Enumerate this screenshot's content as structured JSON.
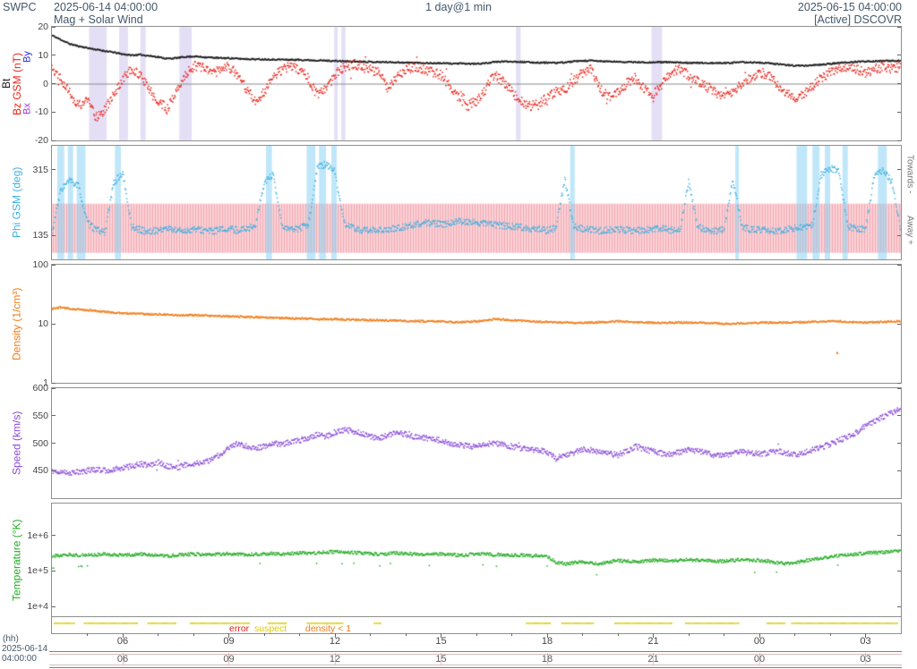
{
  "header": {
    "app_name": "SWPC",
    "start_time": "2025-06-14 04:00:00",
    "cadence": "1 day@1 min",
    "end_time": "2025-06-15 04:00:00",
    "plot_title": "Mag + Solar Wind",
    "source_status": "[Active] DSCOVR"
  },
  "axis_labels": {
    "bt": "Bt",
    "bz": "Bz GSM (nT)",
    "bx": "Bx",
    "by": "By",
    "phi": "Phi GSM (deg)",
    "density": "Density (1/cm³)",
    "speed": "Speed (km/s)",
    "temperature": "Temperature (°K)",
    "towards": "Towards -",
    "away": "Away +"
  },
  "colors": {
    "bt": "#1a1a1a",
    "bz": "#e8231a",
    "by": "#2b2be0",
    "bx": "#9a35d4",
    "phi": "#3fb1e3",
    "density": "#f07d1a",
    "speed": "#8a4bd6",
    "temperature": "#23ab23",
    "band_pink": "#fad2d6",
    "band_pink_line": "#f3abb4",
    "stripe_blue": "rgba(140,212,244,0.55)",
    "stripe_lavender": "rgba(176,158,228,0.33)",
    "suspect": "#ddc900",
    "error": "#e02020",
    "density_lt1": "#f07d1a",
    "header_text": "#44576b",
    "range_strip_line": "#b26b6b"
  },
  "legend": {
    "error": "error",
    "suspect": "suspect",
    "density_lt1": "density < 1"
  },
  "time_axis": {
    "unit_label": "(hh)",
    "start_date_label": "2025-06-14",
    "start_time_label": "04:00:00",
    "tick_hours": [
      6,
      9,
      12,
      15,
      18,
      21,
      24,
      27
    ],
    "tick_labels": [
      "06",
      "09",
      "12",
      "15",
      "18",
      "21",
      "00",
      "03"
    ]
  },
  "quality_flags": {
    "suspect_intervals_hours": [
      [
        4.05,
        4.6
      ],
      [
        4.9,
        6.4
      ],
      [
        6.7,
        7.5
      ],
      [
        7.9,
        9.6
      ],
      [
        10.1,
        10.6
      ],
      [
        11.2,
        12.2
      ],
      [
        13.1,
        13.3
      ],
      [
        17.4,
        18.1
      ],
      [
        18.4,
        19.3
      ],
      [
        19.9,
        21.5
      ],
      [
        21.9,
        23.4
      ],
      [
        24.2,
        24.7
      ],
      [
        24.9,
        27.9
      ]
    ]
  },
  "chart_data": [
    {
      "type": "scatter",
      "panel": "magnetic-field",
      "ylabel": "Bt, Bz GSM (nT)",
      "yscale": "linear",
      "ylim": [
        -20,
        20
      ],
      "yticks": [
        {
          "v": 20,
          "label": "20"
        },
        {
          "v": 10,
          "label": "10"
        },
        {
          "v": 0,
          "label": "0"
        },
        {
          "v": -10,
          "label": "-10"
        },
        {
          "v": -20,
          "label": "-20"
        }
      ],
      "zero_line": true,
      "x_start_hour": 4,
      "x_step_hour": 0.25,
      "x_end_hour": 28,
      "stripe_color": "lavender",
      "stripes_hours": [
        [
          5.05,
          5.55
        ],
        [
          5.9,
          6.15
        ],
        [
          6.5,
          6.65
        ],
        [
          7.6,
          7.95
        ],
        [
          11.98,
          12.08
        ],
        [
          12.18,
          12.3
        ],
        [
          17.12,
          17.25
        ],
        [
          20.95,
          21.25
        ]
      ],
      "series": [
        {
          "name": "Bt",
          "color_key": "bt",
          "seed": 11,
          "jitter": 0.25,
          "values": [
            17,
            15.5,
            14,
            13.2,
            12.6,
            12,
            11.5,
            11,
            10.4,
            10,
            10.2,
            9.8,
            9.4,
            8.8,
            9,
            9.4,
            9.6,
            9.4,
            9.2,
            9,
            9,
            8.8,
            8.7,
            8.6,
            8.6,
            8.5,
            8.5,
            8.4,
            8.4,
            8.3,
            8.2,
            8.1,
            8,
            7.9,
            7.8,
            7.8,
            7.7,
            7.6,
            7.6,
            7.5,
            7.4,
            7.4,
            7.3,
            7.2,
            7.2,
            7.1,
            7.1,
            7,
            7,
            7.2,
            7.6,
            7.8,
            7.8,
            7.7,
            7.5,
            7.4,
            7.4,
            7.3,
            7.5,
            7.8,
            8,
            8.1,
            7.9,
            7.8,
            7.7,
            7.6,
            7.6,
            7.5,
            7.5,
            7.6,
            7.5,
            7.4,
            7.4,
            7.3,
            7.3,
            7.2,
            7.3,
            7.4,
            7.5,
            7.5,
            7.4,
            7.2,
            6.9,
            6.6,
            6.4,
            6.3,
            6.5,
            6.7,
            7,
            7.3,
            7.5,
            7.7,
            7.8,
            7.9,
            8,
            8,
            8.1
          ]
        },
        {
          "name": "Bz",
          "color_key": "bz",
          "seed": 22,
          "jitter": 1.7,
          "out_p": 0.03,
          "out_amt": 3.5,
          "values": [
            6,
            2,
            -3,
            -8,
            -5,
            -12,
            -9,
            -4,
            2,
            5,
            3,
            -2,
            -6,
            -9,
            -3,
            3,
            6,
            6,
            4,
            5,
            6,
            3,
            -2,
            -6,
            -3,
            2,
            5,
            6,
            5,
            2,
            -4,
            -2,
            3,
            6,
            7,
            6,
            5,
            4,
            -2,
            2,
            5,
            6,
            5,
            4,
            3,
            -1,
            -5,
            -8,
            -6,
            -2,
            3,
            1,
            -3,
            -6,
            -8,
            -7,
            -5,
            -3,
            -2,
            1,
            4,
            5,
            -2,
            -5,
            -3,
            0,
            2,
            -2,
            -4,
            0,
            4,
            5,
            3,
            1,
            -1,
            -3,
            -5,
            -3,
            0,
            2,
            4,
            3,
            0,
            -3,
            -5,
            -4,
            -1,
            2,
            4,
            5,
            6,
            5,
            4,
            5,
            6,
            5,
            6
          ]
        }
      ]
    },
    {
      "type": "scatter",
      "panel": "phi-gsm",
      "ylabel": "Phi GSM (deg)",
      "yscale": "linear",
      "ylim": [
        70,
        380
      ],
      "yticks": [
        {
          "v": 315,
          "label": "315"
        },
        {
          "v": 135,
          "label": "135"
        }
      ],
      "band_deg": [
        88,
        222
      ],
      "right_labels": [
        "Towards -",
        "Away +"
      ],
      "x_start_hour": 4,
      "x_step_hour": 0.25,
      "x_end_hour": 28,
      "stripe_color": "blue",
      "stripes_hours": [
        [
          4.15,
          4.35
        ],
        [
          4.45,
          4.6
        ],
        [
          4.7,
          4.95
        ],
        [
          5.78,
          5.95
        ],
        [
          10.05,
          10.22
        ],
        [
          11.2,
          11.45
        ],
        [
          11.55,
          11.75
        ],
        [
          11.9,
          12.05
        ],
        [
          18.65,
          18.78
        ],
        [
          23.32,
          23.42
        ],
        [
          25.05,
          25.35
        ],
        [
          25.5,
          25.7
        ],
        [
          25.85,
          26.0
        ],
        [
          26.35,
          26.5
        ],
        [
          27.35,
          27.6
        ]
      ],
      "series": [
        {
          "name": "Phi",
          "color_key": "phi",
          "seed": 33,
          "jitter": 9,
          "values": [
            140,
            260,
            285,
            270,
            170,
            150,
            145,
            280,
            305,
            160,
            150,
            145,
            150,
            155,
            150,
            148,
            152,
            150,
            147,
            150,
            153,
            150,
            155,
            160,
            280,
            300,
            160,
            150,
            155,
            165,
            320,
            330,
            310,
            170,
            155,
            150,
            148,
            152,
            150,
            155,
            160,
            165,
            170,
            168,
            165,
            170,
            175,
            172,
            170,
            168,
            165,
            162,
            160,
            158,
            155,
            152,
            150,
            155,
            290,
            160,
            155,
            150,
            148,
            150,
            152,
            150,
            148,
            150,
            152,
            155,
            150,
            148,
            280,
            160,
            150,
            148,
            150,
            290,
            160,
            150,
            152,
            150,
            148,
            150,
            155,
            160,
            165,
            300,
            320,
            310,
            160,
            155,
            150,
            300,
            315,
            280,
            150
          ]
        }
      ]
    },
    {
      "type": "scatter",
      "panel": "density",
      "ylabel": "Density (1/cm³)",
      "yscale": "log",
      "ylim": [
        1,
        100
      ],
      "yticks": [
        {
          "v": 100,
          "label": "100"
        },
        {
          "v": 10,
          "label": "10"
        },
        {
          "v": 1,
          "label": "1"
        }
      ],
      "x_start_hour": 4,
      "x_step_hour": 0.25,
      "x_end_hour": 28,
      "outliers": [
        [
          26.2,
          3.2
        ]
      ],
      "series": [
        {
          "name": "Density",
          "color_key": "density",
          "seed": 44,
          "jitter": 0.035,
          "jitter_log": true,
          "values": [
            18,
            19,
            18,
            17.5,
            17,
            16.5,
            16,
            15.5,
            15,
            15,
            14.8,
            14.5,
            14.5,
            14.2,
            14,
            14,
            14,
            13.8,
            13.6,
            13.5,
            13.4,
            13.2,
            13,
            13,
            12.8,
            12.6,
            12.5,
            12.4,
            12.3,
            12.2,
            12,
            12,
            12,
            11.8,
            11.8,
            11.6,
            11.5,
            11.5,
            11.4,
            11.3,
            11.2,
            11.2,
            11,
            11,
            11,
            10.8,
            10.5,
            10.8,
            11,
            11.5,
            12,
            11.8,
            11.5,
            11.3,
            11,
            10.8,
            10.8,
            10.5,
            10.5,
            10.4,
            10.4,
            10.5,
            10.6,
            10.8,
            11,
            10.8,
            10.6,
            10.5,
            10.4,
            10.4,
            10.5,
            10.5,
            10.5,
            10.4,
            10.3,
            10.2,
            10,
            10,
            10.2,
            10.3,
            10.5,
            10.5,
            10.4,
            10.5,
            10.6,
            10.6,
            10.8,
            11,
            11,
            11,
            10.8,
            10.5,
            10.5,
            10.6,
            10.8,
            11,
            11
          ]
        }
      ]
    },
    {
      "type": "scatter",
      "panel": "speed",
      "ylabel": "Speed (km/s)",
      "yscale": "linear",
      "ylim": [
        400,
        600
      ],
      "yticks": [
        {
          "v": 600,
          "label": "600"
        },
        {
          "v": 550,
          "label": "550"
        },
        {
          "v": 500,
          "label": "500"
        },
        {
          "v": 450,
          "label": "450"
        }
      ],
      "x_start_hour": 4,
      "x_step_hour": 0.25,
      "x_end_hour": 28,
      "series": [
        {
          "name": "Speed",
          "color_key": "speed",
          "seed": 55,
          "jitter": 5,
          "out_p": 0.01,
          "out_amt": 12,
          "values": [
            450,
            448,
            446,
            448,
            450,
            452,
            450,
            453,
            455,
            458,
            462,
            460,
            465,
            458,
            455,
            460,
            462,
            465,
            470,
            480,
            492,
            500,
            495,
            490,
            495,
            500,
            498,
            502,
            505,
            510,
            515,
            512,
            520,
            524,
            522,
            518,
            512,
            508,
            515,
            520,
            516,
            512,
            510,
            507,
            505,
            500,
            497,
            495,
            494,
            498,
            500,
            497,
            494,
            491,
            489,
            487,
            484,
            472,
            478,
            482,
            490,
            487,
            484,
            481,
            479,
            486,
            494,
            489,
            485,
            481,
            479,
            484,
            489,
            486,
            482,
            479,
            478,
            481,
            484,
            482,
            480,
            483,
            486,
            482,
            479,
            483,
            488,
            492,
            498,
            505,
            512,
            520,
            532,
            540,
            548,
            555,
            562
          ]
        }
      ]
    },
    {
      "type": "scatter",
      "panel": "temperature",
      "ylabel": "Temperature (°K)",
      "yscale": "log",
      "ylim": [
        5000,
        8000000
      ],
      "yticks": [
        {
          "v": 1000000,
          "label": "1e+6"
        },
        {
          "v": 100000,
          "label": "1e+5"
        },
        {
          "v": 10000,
          "label": "1e+4"
        }
      ],
      "x_start_hour": 4,
      "x_step_hour": 0.25,
      "x_end_hour": 28,
      "series": [
        {
          "name": "Temperature",
          "color_key": "temperature",
          "seed": 66,
          "jitter": 0.1,
          "jitter_log": true,
          "out_p": 0.012,
          "out_mult": 0.5,
          "values": [
            260000,
            280000,
            290000,
            280000,
            280000,
            290000,
            300000,
            290000,
            280000,
            290000,
            300000,
            290000,
            280000,
            270000,
            280000,
            290000,
            300000,
            290000,
            290000,
            300000,
            310000,
            300000,
            290000,
            300000,
            300000,
            310000,
            300000,
            310000,
            320000,
            310000,
            330000,
            340000,
            350000,
            340000,
            330000,
            320000,
            310000,
            300000,
            310000,
            320000,
            310000,
            300000,
            290000,
            300000,
            300000,
            290000,
            280000,
            290000,
            300000,
            300000,
            290000,
            290000,
            280000,
            280000,
            270000,
            270000,
            260000,
            180000,
            160000,
            170000,
            180000,
            170000,
            160000,
            180000,
            200000,
            190000,
            180000,
            190000,
            200000,
            200000,
            190000,
            200000,
            210000,
            200000,
            200000,
            190000,
            190000,
            200000,
            210000,
            200000,
            200000,
            190000,
            170000,
            160000,
            170000,
            190000,
            210000,
            230000,
            250000,
            270000,
            290000,
            300000,
            320000,
            330000,
            340000,
            350000,
            360000
          ]
        }
      ]
    }
  ]
}
